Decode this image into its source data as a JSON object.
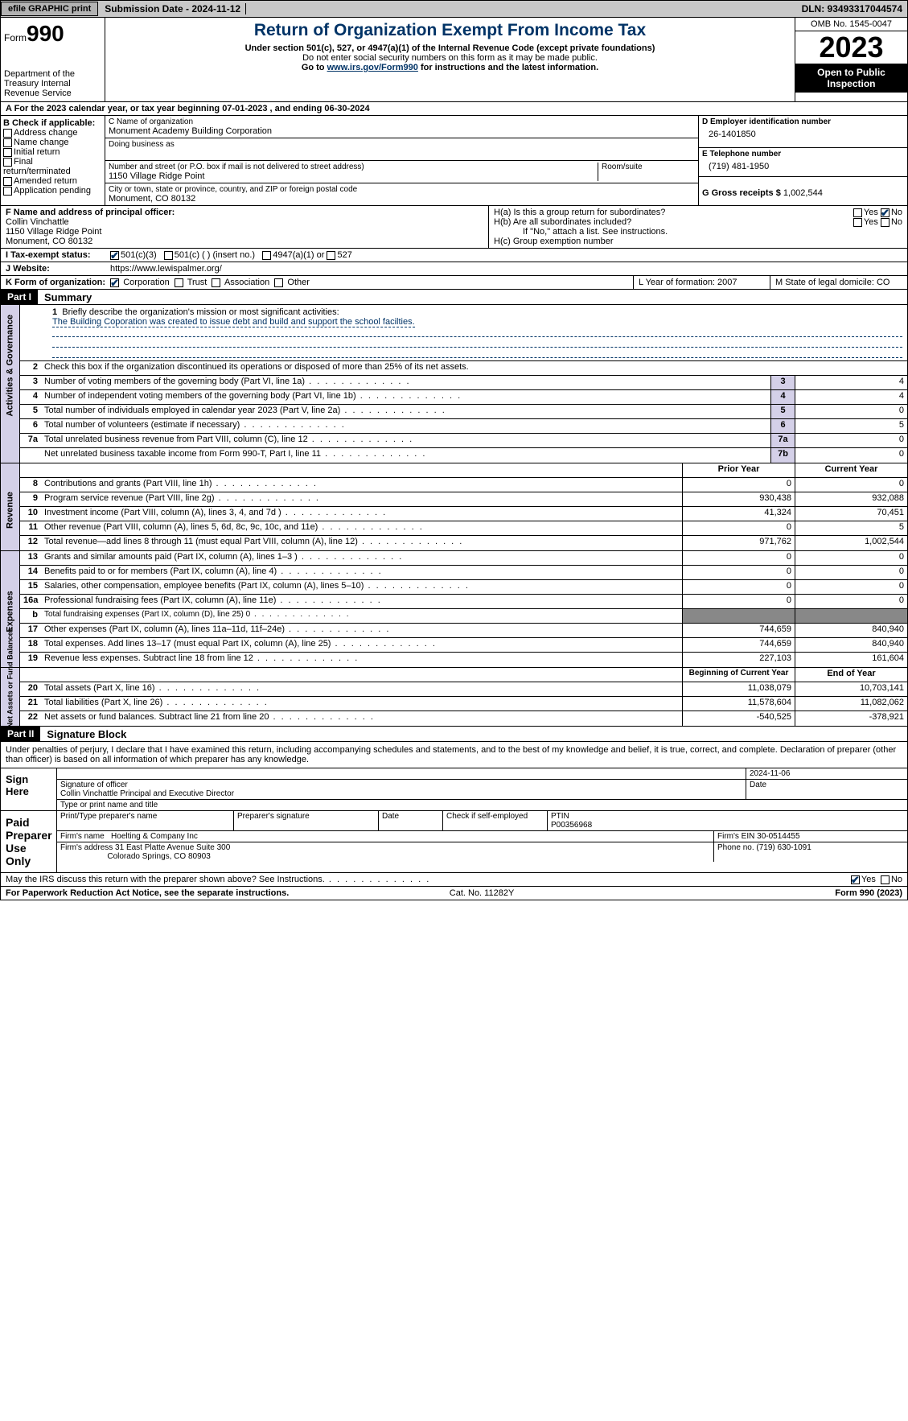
{
  "topbar": {
    "efile": "efile GRAPHIC print",
    "submission": "Submission Date - 2024-11-12",
    "dln": "DLN: 93493317044574"
  },
  "header": {
    "form_label": "Form",
    "form_num": "990",
    "dept": "Department of the Treasury Internal Revenue Service",
    "title": "Return of Organization Exempt From Income Tax",
    "sub1": "Under section 501(c), 527, or 4947(a)(1) of the Internal Revenue Code (except private foundations)",
    "sub2": "Do not enter social security numbers on this form as it may be made public.",
    "sub3_pre": "Go to ",
    "sub3_link": "www.irs.gov/Form990",
    "sub3_post": " for instructions and the latest information.",
    "omb": "OMB No. 1545-0047",
    "year": "2023",
    "inspect": "Open to Public Inspection"
  },
  "rowA": "A For the 2023 calendar year, or tax year beginning 07-01-2023   , and ending 06-30-2024",
  "boxB": {
    "label": "B Check if applicable:",
    "opts": [
      "Address change",
      "Name change",
      "Initial return",
      "Final return/terminated",
      "Amended return",
      "Application pending"
    ]
  },
  "boxC": {
    "name_lbl": "C Name of organization",
    "name": "Monument Academy Building Corporation",
    "dba_lbl": "Doing business as",
    "addr_lbl": "Number and street (or P.O. box if mail is not delivered to street address)",
    "room_lbl": "Room/suite",
    "addr": "1150 Village Ridge Point",
    "city_lbl": "City or town, state or province, country, and ZIP or foreign postal code",
    "city": "Monument, CO  80132"
  },
  "boxD": {
    "lbl": "D Employer identification number",
    "val": "26-1401850"
  },
  "boxE": {
    "lbl": "E Telephone number",
    "val": "(719) 481-1950"
  },
  "boxG": {
    "lbl": "G Gross receipts $",
    "val": "1,002,544"
  },
  "boxF": {
    "lbl": "F  Name and address of principal officer:",
    "name": "Collin Vinchattle",
    "addr1": "1150 Village Ridge Point",
    "addr2": "Monument, CO  80132"
  },
  "boxH": {
    "ha": "H(a)  Is this a group return for subordinates?",
    "hb": "H(b)  Are all subordinates included?",
    "hb2": "If \"No,\" attach a list. See instructions.",
    "hc": "H(c)  Group exemption number"
  },
  "boxI": {
    "lbl": "I    Tax-exempt status:",
    "o1": "501(c)(3)",
    "o2": "501(c) (  ) (insert no.)",
    "o3": "4947(a)(1) or",
    "o4": "527"
  },
  "boxJ": {
    "lbl": "J    Website:",
    "val": "https://www.lewispalmer.org/"
  },
  "boxK": {
    "lbl": "K Form of organization:",
    "o1": "Corporation",
    "o2": "Trust",
    "o3": "Association",
    "o4": "Other"
  },
  "boxL": "L Year of formation: 2007",
  "boxM": "M State of legal domicile: CO",
  "part1": {
    "bar": "Part I",
    "title": "Summary"
  },
  "summary": {
    "l1_lbl": "Briefly describe the organization's mission or most significant activities:",
    "l1_txt": "The Building Coporation was created to issue debt and build and support the school facilties.",
    "l2": "Check this box       if the organization discontinued its operations or disposed of more than 25% of its net assets.",
    "gov_label": "Activities & Governance",
    "rev_label": "Revenue",
    "exp_label": "Expenses",
    "net_label": "Net Assets or Fund Balances",
    "rows_gov": [
      {
        "n": "3",
        "d": "Number of voting members of the governing body (Part VI, line 1a)",
        "b": "3",
        "v": "4"
      },
      {
        "n": "4",
        "d": "Number of independent voting members of the governing body (Part VI, line 1b)",
        "b": "4",
        "v": "4"
      },
      {
        "n": "5",
        "d": "Total number of individuals employed in calendar year 2023 (Part V, line 2a)",
        "b": "5",
        "v": "0"
      },
      {
        "n": "6",
        "d": "Total number of volunteers (estimate if necessary)",
        "b": "6",
        "v": "5"
      },
      {
        "n": "7a",
        "d": "Total unrelated business revenue from Part VIII, column (C), line 12",
        "b": "7a",
        "v": "0"
      },
      {
        "n": "",
        "d": "Net unrelated business taxable income from Form 990-T, Part I, line 11",
        "b": "7b",
        "v": "0"
      }
    ],
    "hdr_prior": "Prior Year",
    "hdr_curr": "Current Year",
    "rows_rev": [
      {
        "n": "8",
        "d": "Contributions and grants (Part VIII, line 1h)",
        "p": "0",
        "c": "0"
      },
      {
        "n": "9",
        "d": "Program service revenue (Part VIII, line 2g)",
        "p": "930,438",
        "c": "932,088"
      },
      {
        "n": "10",
        "d": "Investment income (Part VIII, column (A), lines 3, 4, and 7d )",
        "p": "41,324",
        "c": "70,451"
      },
      {
        "n": "11",
        "d": "Other revenue (Part VIII, column (A), lines 5, 6d, 8c, 9c, 10c, and 11e)",
        "p": "0",
        "c": "5"
      },
      {
        "n": "12",
        "d": "Total revenue—add lines 8 through 11 (must equal Part VIII, column (A), line 12)",
        "p": "971,762",
        "c": "1,002,544"
      }
    ],
    "rows_exp": [
      {
        "n": "13",
        "d": "Grants and similar amounts paid (Part IX, column (A), lines 1–3 )",
        "p": "0",
        "c": "0"
      },
      {
        "n": "14",
        "d": "Benefits paid to or for members (Part IX, column (A), line 4)",
        "p": "0",
        "c": "0"
      },
      {
        "n": "15",
        "d": "Salaries, other compensation, employee benefits (Part IX, column (A), lines 5–10)",
        "p": "0",
        "c": "0"
      },
      {
        "n": "16a",
        "d": "Professional fundraising fees (Part IX, column (A), line 11e)",
        "p": "0",
        "c": "0"
      },
      {
        "n": "b",
        "d": "Total fundraising expenses (Part IX, column (D), line 25) 0",
        "p": "",
        "c": "",
        "gray": true,
        "small": true
      },
      {
        "n": "17",
        "d": "Other expenses (Part IX, column (A), lines 11a–11d, 11f–24e)",
        "p": "744,659",
        "c": "840,940"
      },
      {
        "n": "18",
        "d": "Total expenses. Add lines 13–17 (must equal Part IX, column (A), line 25)",
        "p": "744,659",
        "c": "840,940"
      },
      {
        "n": "19",
        "d": "Revenue less expenses. Subtract line 18 from line 12",
        "p": "227,103",
        "c": "161,604"
      }
    ],
    "hdr_beg": "Beginning of Current Year",
    "hdr_end": "End of Year",
    "rows_net": [
      {
        "n": "20",
        "d": "Total assets (Part X, line 16)",
        "p": "11,038,079",
        "c": "10,703,141"
      },
      {
        "n": "21",
        "d": "Total liabilities (Part X, line 26)",
        "p": "11,578,604",
        "c": "11,082,062"
      },
      {
        "n": "22",
        "d": "Net assets or fund balances. Subtract line 21 from line 20",
        "p": "-540,525",
        "c": "-378,921"
      }
    ]
  },
  "part2": {
    "bar": "Part II",
    "title": "Signature Block"
  },
  "sig": {
    "perjury": "Under penalties of perjury, I declare that I have examined this return, including accompanying schedules and statements, and to the best of my knowledge and belief, it is true, correct, and complete. Declaration of preparer (other than officer) is based on all information of which preparer has any knowledge.",
    "sign_here": "Sign Here",
    "sig_officer": "Signature of officer",
    "sig_date": "Date",
    "sig_date_val": "2024-11-06",
    "officer": "Collin Vinchattle  Principal and Executive Director",
    "type_name": "Type or print name and title",
    "paid": "Paid Preparer Use Only",
    "prep_name": "Print/Type preparer's name",
    "prep_sig": "Preparer's signature",
    "prep_date": "Date",
    "self_emp": "Check        if self-employed",
    "ptin_lbl": "PTIN",
    "ptin": "P00356968",
    "firm_name_lbl": "Firm's name",
    "firm_name": "Hoelting & Company Inc",
    "firm_ein_lbl": "Firm's EIN",
    "firm_ein": "30-0514455",
    "firm_addr_lbl": "Firm's address",
    "firm_addr1": "31 East Platte Avenue Suite 300",
    "firm_addr2": "Colorado Springs, CO  80903",
    "phone_lbl": "Phone no.",
    "phone": "(719) 630-1091"
  },
  "discuss": "May the IRS discuss this return with the preparer shown above? See Instructions.",
  "footer": {
    "left": "For Paperwork Reduction Act Notice, see the separate instructions.",
    "cat": "Cat. No. 11282Y",
    "form": "Form 990 (2023)"
  }
}
